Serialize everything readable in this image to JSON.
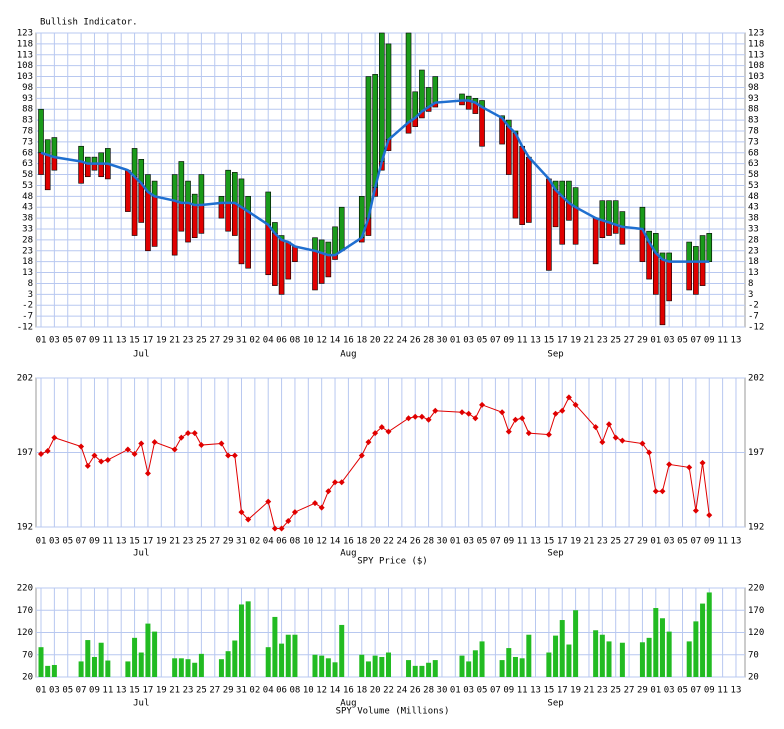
{
  "chart_data": [
    {
      "type": "indicator",
      "title": "Bullish Indicator.",
      "color": "#1f6fd0",
      "up_color": "#1a9a1a",
      "down_color": "#e00000",
      "grid": true,
      "xlim": [
        0.25,
        106.35
      ],
      "xticks": [
        {
          "value": 1,
          "label": "01"
        },
        {
          "value": 3,
          "label": "03"
        },
        {
          "value": 5,
          "label": "05"
        },
        {
          "value": 7,
          "label": "07"
        },
        {
          "value": 9,
          "label": "09"
        },
        {
          "value": 11,
          "label": "11"
        },
        {
          "value": 13,
          "label": "13"
        },
        {
          "value": 15,
          "label": "15"
        },
        {
          "value": 17,
          "label": "17"
        },
        {
          "value": 19,
          "label": "19"
        },
        {
          "value": 21,
          "label": "21"
        },
        {
          "value": 23,
          "label": "23"
        },
        {
          "value": 25,
          "label": "25"
        },
        {
          "value": 27,
          "label": "27"
        },
        {
          "value": 29,
          "label": "29"
        },
        {
          "value": 31,
          "label": "31"
        },
        {
          "value": 33,
          "label": "02"
        },
        {
          "value": 35,
          "label": "04"
        },
        {
          "value": 37,
          "label": "06"
        },
        {
          "value": 39,
          "label": "08"
        },
        {
          "value": 41,
          "label": "10"
        },
        {
          "value": 43,
          "label": "12"
        },
        {
          "value": 45,
          "label": "14"
        },
        {
          "value": 47,
          "label": "16"
        },
        {
          "value": 49,
          "label": "18"
        },
        {
          "value": 51,
          "label": "20"
        },
        {
          "value": 53,
          "label": "22"
        },
        {
          "value": 55,
          "label": "24"
        },
        {
          "value": 57,
          "label": "26"
        },
        {
          "value": 59,
          "label": "28"
        },
        {
          "value": 61,
          "label": "30"
        },
        {
          "value": 63,
          "label": "01"
        },
        {
          "value": 65,
          "label": "03"
        },
        {
          "value": 67,
          "label": "05"
        },
        {
          "value": 69,
          "label": "07"
        },
        {
          "value": 71,
          "label": "09"
        },
        {
          "value": 73,
          "label": "11"
        },
        {
          "value": 75,
          "label": "13"
        },
        {
          "value": 77,
          "label": "15"
        },
        {
          "value": 79,
          "label": "17"
        },
        {
          "value": 81,
          "label": "19"
        },
        {
          "value": 83,
          "label": "21"
        },
        {
          "value": 85,
          "label": "23"
        },
        {
          "value": 87,
          "label": "25"
        },
        {
          "value": 89,
          "label": "27"
        },
        {
          "value": 91,
          "label": "29"
        },
        {
          "value": 93,
          "label": "01"
        },
        {
          "value": 95,
          "label": "03"
        },
        {
          "value": 97,
          "label": "05"
        },
        {
          "value": 99,
          "label": "07"
        },
        {
          "value": 101,
          "label": "09"
        },
        {
          "value": 103,
          "label": "11"
        },
        {
          "value": 105,
          "label": "13"
        }
      ],
      "months": [
        {
          "value": 16,
          "label": "Jul"
        },
        {
          "value": 47,
          "label": "Aug"
        },
        {
          "value": 78,
          "label": "Sep"
        }
      ],
      "x": [
        1,
        2,
        3,
        7,
        8,
        9,
        10,
        11,
        14,
        15,
        16,
        17,
        18,
        21,
        22,
        23,
        24,
        25,
        28,
        29,
        30,
        31,
        32,
        35,
        36,
        37,
        38,
        39,
        42,
        43,
        44,
        45,
        46,
        49,
        50,
        51,
        52,
        53,
        56,
        57,
        58,
        59,
        60,
        64,
        65,
        66,
        67,
        70,
        71,
        72,
        73,
        74,
        77,
        78,
        79,
        80,
        81,
        84,
        85,
        86,
        87,
        88,
        91,
        92,
        93,
        94,
        95,
        98,
        99,
        100,
        101
      ],
      "ylim": [
        -12,
        123
      ],
      "yticks": [
        -12,
        -7,
        -2,
        3,
        8,
        13,
        18,
        23,
        28,
        33,
        38,
        43,
        48,
        53,
        58,
        63,
        68,
        73,
        78,
        83,
        88,
        93,
        98,
        103,
        108,
        113,
        118,
        123
      ],
      "values": [
        68,
        67,
        66,
        64,
        63,
        63,
        63,
        63,
        60,
        57,
        54,
        50,
        48,
        46,
        45,
        45,
        44,
        44,
        45,
        45,
        45,
        43,
        41,
        35,
        31,
        28,
        27,
        25,
        23,
        22,
        21,
        21,
        23,
        29,
        38,
        52,
        64,
        74,
        82,
        84,
        87,
        89,
        91,
        92,
        92,
        91,
        89,
        84,
        80,
        77,
        71,
        66,
        56,
        51,
        48,
        45,
        43,
        38,
        37,
        36,
        35,
        34,
        33,
        27,
        22,
        19,
        18,
        18,
        18,
        18,
        18
      ],
      "high": [
        88,
        74,
        75,
        71,
        66,
        66,
        68,
        70,
        60,
        70,
        65,
        58,
        55,
        58,
        64,
        55,
        49,
        58,
        48,
        60,
        59,
        56,
        48,
        50,
        36,
        30,
        27,
        25,
        29,
        28,
        27,
        34,
        43,
        48,
        103,
        104,
        123,
        118,
        123,
        96,
        106,
        98,
        103,
        95,
        94,
        93,
        92,
        85,
        83,
        78,
        71,
        66,
        56,
        55,
        55,
        55,
        52,
        38,
        46,
        46,
        46,
        41,
        43,
        32,
        31,
        22,
        22,
        27,
        25,
        30,
        31
      ],
      "low": [
        58,
        51,
        60,
        54,
        57,
        60,
        57,
        56,
        41,
        30,
        36,
        23,
        25,
        21,
        32,
        27,
        29,
        31,
        38,
        32,
        30,
        17,
        15,
        12,
        7,
        3,
        10,
        18,
        5,
        8,
        11,
        19,
        23,
        27,
        30,
        48,
        60,
        69,
        77,
        80,
        84,
        87,
        89,
        90,
        88,
        86,
        71,
        72,
        58,
        38,
        35,
        36,
        14,
        34,
        26,
        37,
        26,
        17,
        29,
        30,
        31,
        26,
        18,
        10,
        3,
        -11,
        0,
        5,
        3,
        7,
        18
      ]
    },
    {
      "type": "line",
      "title": "SPY Price ($)",
      "color": "#e00000",
      "grid": true,
      "ylim": [
        192,
        202
      ],
      "yticks": [
        192,
        197,
        202
      ],
      "values": [
        196.9,
        197.1,
        198.0,
        197.4,
        196.1,
        196.8,
        196.4,
        196.5,
        197.2,
        196.9,
        197.6,
        195.6,
        197.7,
        197.2,
        198.0,
        198.3,
        198.3,
        197.5,
        197.6,
        196.8,
        196.8,
        193.0,
        192.5,
        193.7,
        191.9,
        191.9,
        192.4,
        193.0,
        193.6,
        193.3,
        194.4,
        195.0,
        195.0,
        196.8,
        197.7,
        198.3,
        198.7,
        198.4,
        199.3,
        199.4,
        199.4,
        199.2,
        199.8,
        199.7,
        199.6,
        199.3,
        200.2,
        199.7,
        198.4,
        199.2,
        199.3,
        198.3,
        198.2,
        199.6,
        199.8,
        200.7,
        200.2,
        198.7,
        197.7,
        198.9,
        198.0,
        197.8,
        197.6,
        197.0,
        194.4,
        194.4,
        196.2,
        196.0,
        193.1,
        196.3,
        192.8
      ]
    },
    {
      "type": "bar",
      "title": "SPY Volume (Millions)",
      "color": "#22bb22",
      "grid": true,
      "ylim": [
        20,
        220
      ],
      "yticks": [
        20,
        70,
        120,
        170,
        220
      ],
      "values": [
        87,
        45,
        47,
        55,
        103,
        65,
        97,
        57,
        55,
        108,
        75,
        140,
        122,
        62,
        62,
        60,
        52,
        72,
        60,
        78,
        102,
        183,
        190,
        87,
        155,
        95,
        115,
        115,
        70,
        68,
        62,
        53,
        137,
        70,
        55,
        68,
        65,
        75,
        58,
        45,
        45,
        52,
        58,
        68,
        55,
        80,
        100,
        58,
        85,
        65,
        62,
        115,
        75,
        113,
        148,
        93,
        170,
        125,
        115,
        100,
        null,
        97,
        98,
        108,
        175,
        152,
        122,
        100,
        145,
        185,
        210
      ]
    }
  ]
}
